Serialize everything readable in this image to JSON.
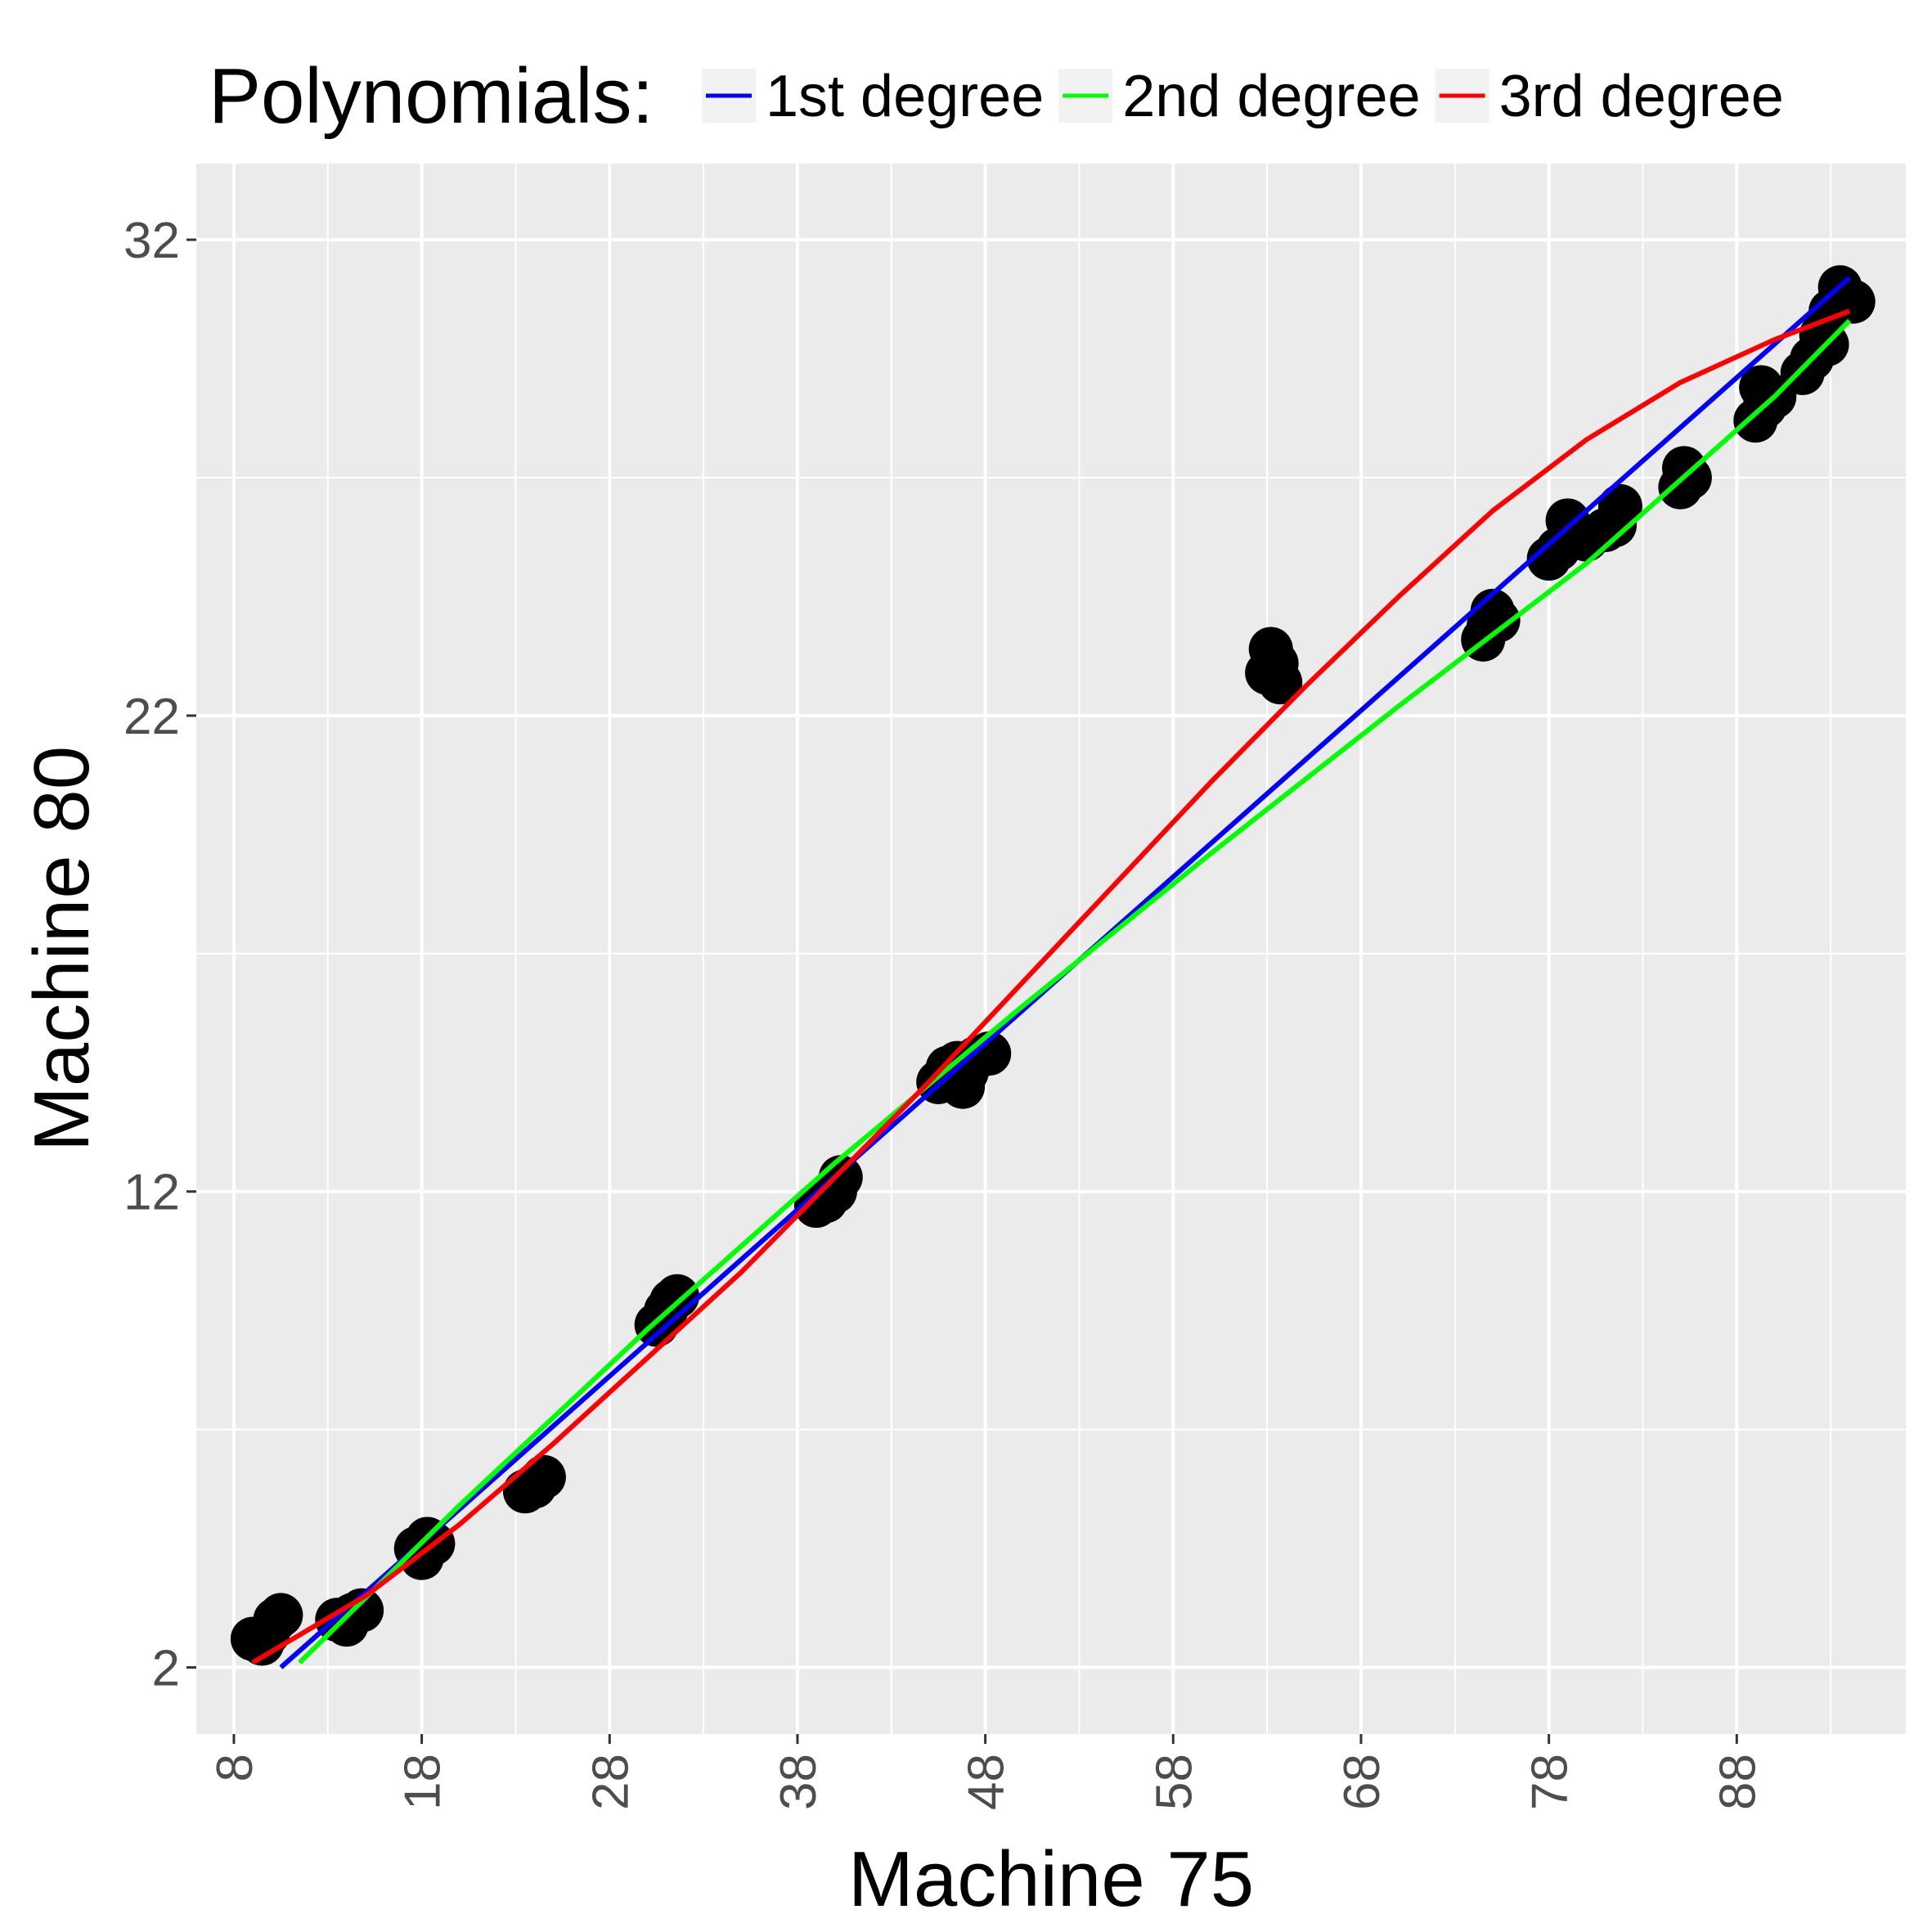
{
  "chart_data": {
    "type": "scatter",
    "xlabel": "Machine 75",
    "ylabel": "Machine 80",
    "xlim": [
      6,
      97
    ],
    "ylim": [
      0.6,
      33.6
    ],
    "x_ticks": [
      "8",
      "18",
      "28",
      "38",
      "48",
      "58",
      "68",
      "78",
      "88"
    ],
    "y_ticks": [
      "2",
      "12",
      "22",
      "32"
    ],
    "grid": true,
    "legend": {
      "title": "Polynomials:",
      "position": "top",
      "entries": [
        {
          "label": "1st degree",
          "color": "#0000ff"
        },
        {
          "label": "2nd degree",
          "color": "#00ff00"
        },
        {
          "label": "3rd degree",
          "color": "#ff0000"
        }
      ]
    },
    "points": [
      [
        9.0,
        2.6
      ],
      [
        9.5,
        2.5
      ],
      [
        9.8,
        2.7
      ],
      [
        10.2,
        3.0
      ],
      [
        10.5,
        3.1
      ],
      [
        13.5,
        3.0
      ],
      [
        14.0,
        2.9
      ],
      [
        14.3,
        3.1
      ],
      [
        14.8,
        3.2
      ],
      [
        17.7,
        4.5
      ],
      [
        18.0,
        4.3
      ],
      [
        18.3,
        4.7
      ],
      [
        18.6,
        4.6
      ],
      [
        23.5,
        5.7
      ],
      [
        24.0,
        5.8
      ],
      [
        24.5,
        6.0
      ],
      [
        30.5,
        9.2
      ],
      [
        31.0,
        9.5
      ],
      [
        31.3,
        9.7
      ],
      [
        31.6,
        9.8
      ],
      [
        39.0,
        11.7
      ],
      [
        39.5,
        11.8
      ],
      [
        40.0,
        12.0
      ],
      [
        40.3,
        12.3
      ],
      [
        45.5,
        14.3
      ],
      [
        46.0,
        14.6
      ],
      [
        46.5,
        14.7
      ],
      [
        47.0,
        14.5
      ],
      [
        47.5,
        14.8
      ],
      [
        48.2,
        14.9
      ],
      [
        46.8,
        14.2
      ],
      [
        63.0,
        22.9
      ],
      [
        63.2,
        23.4
      ],
      [
        63.5,
        23.1
      ],
      [
        63.7,
        22.7
      ],
      [
        74.5,
        23.6
      ],
      [
        75.0,
        24.2
      ],
      [
        75.3,
        24.0
      ],
      [
        74.8,
        23.9
      ],
      [
        78.0,
        25.3
      ],
      [
        78.5,
        25.5
      ],
      [
        79.0,
        26.1
      ],
      [
        79.5,
        25.8
      ],
      [
        80.0,
        25.7
      ],
      [
        81.5,
        26.0
      ],
      [
        81.8,
        26.4
      ],
      [
        81.0,
        25.9
      ],
      [
        85.0,
        26.8
      ],
      [
        85.5,
        27.0
      ],
      [
        85.2,
        27.2
      ],
      [
        89.0,
        28.2
      ],
      [
        89.5,
        28.5
      ],
      [
        90.0,
        28.7
      ],
      [
        89.3,
        28.9
      ],
      [
        91.5,
        29.2
      ],
      [
        92.0,
        29.5
      ],
      [
        92.5,
        30.0
      ],
      [
        93.0,
        30.5
      ],
      [
        93.5,
        31.0
      ],
      [
        93.8,
        30.8
      ],
      [
        94.2,
        30.7
      ],
      [
        92.8,
        29.8
      ]
    ],
    "series": [
      {
        "name": "1st degree",
        "color": "#0000ff",
        "x": [
          10.5,
          94.0
        ],
        "y": [
          2.0,
          31.2
        ]
      },
      {
        "name": "2nd degree",
        "color": "#00ff00",
        "x": [
          11.5,
          20,
          30,
          40,
          50,
          60,
          70,
          80,
          90,
          94.0
        ],
        "y": [
          2.1,
          5.4,
          9.1,
          12.6,
          15.9,
          19.1,
          22.2,
          25.2,
          28.7,
          30.3
        ]
      },
      {
        "name": "3rd degree",
        "color": "#ff0000",
        "x": [
          9.0,
          15,
          20,
          25,
          30,
          35,
          40,
          45,
          50,
          55,
          60,
          65,
          70,
          75,
          80,
          85,
          90,
          94.0
        ],
        "y": [
          2.1,
          3.5,
          5.0,
          6.7,
          8.5,
          10.3,
          12.3,
          14.3,
          16.4,
          18.5,
          20.6,
          22.6,
          24.5,
          26.3,
          27.8,
          29.0,
          29.9,
          30.5
        ]
      }
    ]
  }
}
